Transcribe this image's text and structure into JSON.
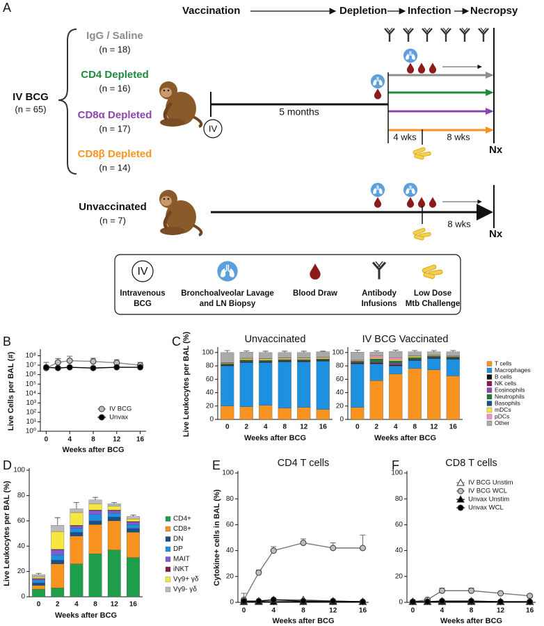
{
  "diagram": {
    "panel": "A",
    "timeline": [
      "Vaccination",
      "Depletion",
      "Infection",
      "Necropsy"
    ],
    "cohort": {
      "label": "IV BCG",
      "n": "(n = 65)"
    },
    "groups": [
      {
        "name": "IgG / Saline",
        "n": "(n = 18)",
        "color": "#8c8c8c"
      },
      {
        "name": "CD4 Depleted",
        "n": "(n = 16)",
        "color": "#1e8a3c"
      },
      {
        "name": "CD8α Depleted",
        "n": "(n = 17)",
        "color": "#8e44ad"
      },
      {
        "name": "CD8β Depleted",
        "n": "(n = 14)",
        "color": "#f7931e"
      }
    ],
    "vaccine_route": "IV",
    "interval": "5 months",
    "depletion_phase": "4 wks",
    "infection_phase": "8 wks",
    "endpoint": "Nx",
    "control": {
      "name": "Unvaccinated",
      "n": "(n = 7)",
      "infection_phase": "8 wks",
      "endpoint": "Nx"
    },
    "legend": [
      {
        "symbol": "IV",
        "lines": [
          "Intravenous",
          "BCG"
        ]
      },
      {
        "lines": [
          "Bronchoalveolar Lavage",
          "and LN Biopsy"
        ]
      },
      {
        "lines": [
          "Blood Draw"
        ]
      },
      {
        "lines": [
          "Antibody",
          "Infusions"
        ]
      },
      {
        "lines": [
          "Low Dose",
          "Mtb Challenge"
        ]
      }
    ]
  },
  "chart_data": [
    {
      "panel": "B",
      "type": "line",
      "log_scale": true,
      "xlabel": "Weeks after BCG",
      "ylabel": "Live Cells per BAL (#)",
      "x": [
        0,
        2,
        4,
        8,
        12,
        16
      ],
      "xlim": [
        -1,
        17
      ],
      "xticks": [
        0,
        4,
        8,
        12,
        16
      ],
      "ylim": [
        1,
        300000000
      ],
      "yticks": [
        {
          "value": 1,
          "label": "10⁰"
        },
        {
          "value": 10,
          "label": "10¹"
        },
        {
          "value": 100,
          "label": "10²"
        },
        {
          "value": 1000,
          "label": "10³"
        },
        {
          "value": 10000,
          "label": "10⁴"
        },
        {
          "value": 100000,
          "label": "10⁵"
        },
        {
          "value": 1000000,
          "label": "10⁶"
        },
        {
          "value": 10000000,
          "label": "10⁷"
        },
        {
          "value": 100000000,
          "label": "10⁸"
        }
      ],
      "legend": "lower right",
      "series": [
        {
          "name": "IV BCG",
          "color": "#bdbdbd",
          "line_color": "#888888",
          "marker": "circle",
          "values": [
            5000000,
            20000000,
            30000000,
            25000000,
            18000000,
            10000000
          ],
          "errors": [
            15000000,
            30000000,
            60000000,
            30000000,
            20000000,
            10000000
          ]
        },
        {
          "name": "Unvax",
          "color": "#000000",
          "line_color": "#000000",
          "marker": "circle",
          "values": [
            6000000,
            5000000,
            6000000,
            5000000,
            6000000,
            6000000
          ]
        }
      ]
    },
    {
      "panel": "C",
      "type": "stacked_bar",
      "title": "Unvaccinated",
      "xlabel": "Weeks after BCG",
      "ylabel": "Live Leukocytes per BAL (%)",
      "categories": [
        0,
        2,
        4,
        8,
        12,
        16
      ],
      "ylim": [
        0,
        105
      ],
      "yticks": [
        0,
        20,
        40,
        60,
        80,
        100
      ],
      "series": [
        {
          "name": "T cells",
          "color": "#f7931e",
          "values": [
            20,
            19,
            21,
            17,
            18,
            15
          ],
          "errors": [
            11,
            8,
            10,
            9,
            7,
            6
          ]
        },
        {
          "name": "Macrophages",
          "color": "#1e90e0",
          "values": [
            60,
            66,
            64,
            69,
            68,
            72
          ]
        },
        {
          "name": "B cells",
          "color": "#111111",
          "values": [
            1,
            1,
            1,
            1,
            1,
            1
          ]
        },
        {
          "name": "NK cells",
          "color": "#8b1a4a",
          "values": [
            0.5,
            0.5,
            0.5,
            0.5,
            0.5,
            0.5
          ]
        },
        {
          "name": "Eosinophils",
          "color": "#8e44ad",
          "values": [
            0.5,
            0.5,
            0.5,
            0.5,
            0.5,
            0.5
          ]
        },
        {
          "name": "Neutrophils",
          "color": "#1a7a3a",
          "values": [
            1,
            1.5,
            1,
            1,
            1,
            1
          ]
        },
        {
          "name": "Basophils",
          "color": "#1a4f8a",
          "values": [
            0.5,
            0.5,
            0.5,
            0.5,
            0.5,
            0.5
          ]
        },
        {
          "name": "mDCs",
          "color": "#f5e642",
          "values": [
            1,
            2,
            2,
            2,
            2,
            2
          ]
        },
        {
          "name": "pDCs",
          "color": "#f78fc8",
          "values": [
            0.5,
            0.5,
            0.5,
            0.5,
            0.5,
            0.5
          ]
        },
        {
          "name": "Other",
          "color": "#aaaaaa",
          "values": [
            15,
            9,
            9,
            8,
            8,
            8
          ],
          "errors": [
            3,
            2,
            2,
            2,
            2,
            1
          ]
        }
      ]
    },
    {
      "type": "stacked_bar",
      "title": "IV BCG Vaccinated",
      "xlabel": "Weeks after BCG",
      "categories": [
        0,
        2,
        4,
        8,
        12,
        16
      ],
      "ylim": [
        0,
        105
      ],
      "yticks": [
        0,
        20,
        40,
        60,
        80,
        100
      ],
      "legend": "right",
      "series": [
        {
          "name": "T cells",
          "color": "#f7931e",
          "values": [
            18,
            58,
            68,
            76,
            74,
            65
          ],
          "errors": [
            9,
            11,
            9,
            8,
            11,
            9
          ]
        },
        {
          "name": "Macrophages",
          "color": "#1e90e0",
          "values": [
            65,
            25,
            12,
            12,
            17,
            25
          ]
        },
        {
          "name": "B cells",
          "color": "#111111",
          "values": [
            1,
            1,
            1,
            1,
            1,
            1
          ]
        },
        {
          "name": "NK cells",
          "color": "#8b1a4a",
          "values": [
            1,
            1,
            1,
            0.5,
            0.5,
            0.5
          ]
        },
        {
          "name": "Eosinophils",
          "color": "#8e44ad",
          "values": [
            0.5,
            1,
            2,
            0.5,
            0.5,
            0.5
          ]
        },
        {
          "name": "Neutrophils",
          "color": "#1a7a3a",
          "values": [
            1,
            4,
            3,
            2,
            1,
            1
          ]
        },
        {
          "name": "Basophils",
          "color": "#1a4f8a",
          "values": [
            0.5,
            0.5,
            0.5,
            0.5,
            0.5,
            0.5
          ]
        },
        {
          "name": "mDCs",
          "color": "#f5e642",
          "values": [
            1,
            2,
            2,
            2,
            1,
            1
          ]
        },
        {
          "name": "pDCs",
          "color": "#f78fc8",
          "values": [
            0.5,
            3,
            3,
            0.5,
            0.5,
            0.5
          ]
        },
        {
          "name": "Other",
          "color": "#aaaaaa",
          "values": [
            12,
            5,
            9,
            6,
            5,
            6
          ],
          "errors": [
            3,
            2,
            2,
            2,
            2,
            2
          ]
        }
      ]
    },
    {
      "panel": "D",
      "type": "stacked_bar",
      "xlabel": "Weeks after BCG",
      "ylabel": "Live Leukocytes per BAL (%)",
      "categories": [
        0,
        2,
        4,
        8,
        12,
        16
      ],
      "ylim": [
        0,
        100
      ],
      "yticks": [
        0,
        20,
        40,
        60,
        80,
        100
      ],
      "legend": "right",
      "series": [
        {
          "name": "CD4+",
          "color": "#1e9e4a",
          "values": [
            6,
            7,
            26,
            34,
            37,
            31
          ],
          "errors": [
            1,
            3,
            7,
            8,
            9,
            6
          ]
        },
        {
          "name": "CD8+",
          "color": "#f7931e",
          "values": [
            3,
            19,
            22,
            23,
            23,
            20
          ],
          "errors": [
            2,
            4,
            5,
            6,
            6,
            5
          ]
        },
        {
          "name": "DN",
          "color": "#1a4f8a",
          "values": [
            2,
            3,
            3,
            3,
            3,
            3
          ]
        },
        {
          "name": "DP",
          "color": "#1e90e0",
          "values": [
            2,
            4,
            3,
            5,
            3,
            3
          ]
        },
        {
          "name": "MAIT",
          "color": "#7b5cd6",
          "values": [
            1,
            4,
            2,
            3,
            2,
            2
          ]
        },
        {
          "name": "iNKT",
          "color": "#8b1a4a",
          "values": [
            0.5,
            0.5,
            0.5,
            0.5,
            0.5,
            0.5
          ]
        },
        {
          "name": "Vγ9+ γδ",
          "color": "#f5e642",
          "values": [
            1,
            14,
            10,
            5,
            3,
            2
          ]
        },
        {
          "name": "Vγ9- γδ",
          "color": "#bbbbbb",
          "values": [
            2,
            5,
            3,
            3,
            2,
            2
          ],
          "errors": [
            1,
            6,
            5,
            2,
            1,
            1
          ]
        }
      ]
    },
    {
      "panel": "E",
      "type": "line",
      "title": "CD4 T cells",
      "xlabel": "Weeks after BCG",
      "ylabel": "Cytokine+ cells in BAL (%)",
      "x": [
        0,
        2,
        4,
        8,
        12,
        16
      ],
      "xlim": [
        -0.8,
        16.8
      ],
      "xticks": [
        0,
        4,
        8,
        12,
        16
      ],
      "ylim": [
        0,
        100
      ],
      "yticks": [
        0,
        20,
        40,
        60,
        80,
        100
      ],
      "series": [
        {
          "name": "IV BCG Unstim",
          "color": "#ffffff",
          "line_color": "#777777",
          "marker": "triangle",
          "values": [
            0.5,
            1,
            2,
            2,
            1,
            0.5
          ]
        },
        {
          "name": "IV BCG WCL",
          "color": "#bdbdbd",
          "line_color": "#777777",
          "marker": "circle",
          "values": [
            2,
            23,
            40,
            46,
            42,
            42
          ],
          "errors": [
            5,
            2,
            3,
            3,
            4,
            10
          ]
        },
        {
          "name": "Unvax Unstim",
          "color": "#000000",
          "line_color": "#000000",
          "marker": "triangle",
          "values": [
            0.5,
            0.5,
            0.5,
            0.5,
            0.5,
            0.5
          ]
        },
        {
          "name": "Unvax WCL",
          "color": "#000000",
          "line_color": "#000000",
          "marker": "circle",
          "values": [
            1,
            1,
            2,
            1,
            1,
            0.5
          ]
        }
      ]
    },
    {
      "panel": "F",
      "type": "line",
      "title": "CD8 T cells",
      "xlabel": "Weeks after BCG",
      "x": [
        0,
        2,
        4,
        8,
        12,
        16
      ],
      "xlim": [
        -0.8,
        16.8
      ],
      "xticks": [
        0,
        4,
        8,
        12,
        16
      ],
      "ylim": [
        0,
        100
      ],
      "yticks": [
        0,
        20,
        40,
        60,
        80,
        100
      ],
      "legend": "upper right",
      "series": [
        {
          "name": "IV BCG Unstim",
          "color": "#ffffff",
          "line_color": "#777777",
          "marker": "triangle",
          "values": [
            0.5,
            0.5,
            1,
            1,
            0.5,
            0.5
          ]
        },
        {
          "name": "IV BCG WCL",
          "color": "#bdbdbd",
          "line_color": "#777777",
          "marker": "circle",
          "values": [
            0.5,
            2,
            9,
            9,
            7,
            5
          ],
          "errors": [
            0.5,
            1,
            2,
            2,
            1,
            1
          ]
        },
        {
          "name": "Unvax Unstim",
          "color": "#000000",
          "line_color": "#000000",
          "marker": "triangle",
          "values": [
            0.5,
            0.5,
            0.5,
            0.5,
            0.5,
            0.5
          ]
        },
        {
          "name": "Unvax WCL",
          "color": "#000000",
          "line_color": "#000000",
          "marker": "circle",
          "values": [
            0.5,
            0.5,
            1,
            1,
            0.5,
            0.5
          ]
        }
      ]
    }
  ]
}
